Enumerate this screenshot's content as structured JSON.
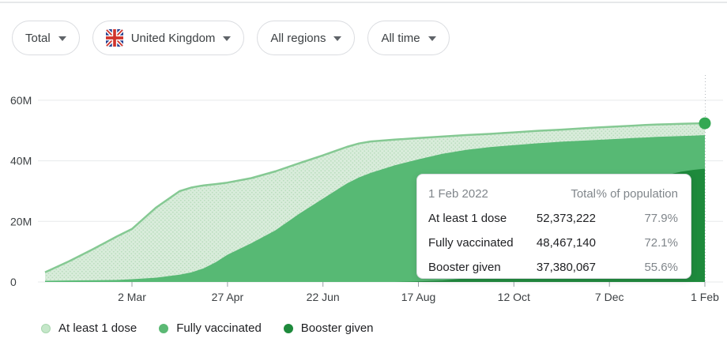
{
  "filters": [
    {
      "label": "Total"
    },
    {
      "label": "United Kingdom",
      "flag": "united-kingdom"
    },
    {
      "label": "All regions"
    },
    {
      "label": "All time"
    }
  ],
  "tooltip": {
    "date": "1 Feb 2022",
    "columns": {
      "total": "Total",
      "pct": "% of population"
    },
    "rows": [
      {
        "label": "At least 1 dose",
        "total": "52,373,222",
        "pct": "77.9%"
      },
      {
        "label": "Fully vaccinated",
        "total": "48,467,140",
        "pct": "72.1%"
      },
      {
        "label": "Booster given",
        "total": "37,380,067",
        "pct": "55.6%"
      }
    ]
  },
  "legend": [
    {
      "label": "At least 1 dose",
      "color": "#c5e7c9",
      "ring": "#a8d6ae"
    },
    {
      "label": "Fully vaccinated",
      "color": "#5bb974",
      "ring": "#5bb974"
    },
    {
      "label": "Booster given",
      "color": "#1e8a3c",
      "ring": "#1e8a3c"
    }
  ],
  "chart_data": {
    "type": "area",
    "title": "",
    "xlabel": "",
    "ylabel": "",
    "ylim": [
      0,
      68
    ],
    "grid": true,
    "legend_position": "bottom",
    "x_unit": "days-from-chart-start",
    "days": [
      0,
      14,
      28,
      42,
      51,
      65,
      79,
      86,
      93,
      100,
      107,
      121,
      135,
      149,
      163,
      170,
      177,
      184,
      191,
      205,
      219,
      233,
      247,
      261,
      275,
      289,
      303,
      317,
      331,
      345,
      352,
      359,
      366,
      373,
      380,
      387
    ],
    "series": [
      {
        "name": "At least 1 dose",
        "fill": "#d9ecdb",
        "pattern_dot": "#b9ddbd",
        "stroke": "#85c993",
        "values": [
          3.2,
          6.8,
          10.8,
          15.0,
          17.5,
          24.5,
          30.0,
          31.2,
          31.9,
          32.3,
          32.8,
          34.3,
          36.5,
          39.2,
          41.8,
          43.2,
          44.6,
          45.7,
          46.4,
          47.0,
          47.5,
          48.0,
          48.5,
          48.9,
          49.4,
          49.9,
          50.3,
          50.8,
          51.2,
          51.6,
          51.8,
          52.0,
          52.1,
          52.2,
          52.3,
          52.373222
        ]
      },
      {
        "name": "Fully vaccinated",
        "fill": "#57b974",
        "stroke": "",
        "values": [
          0.4,
          0.5,
          0.55,
          0.65,
          0.9,
          1.4,
          2.4,
          3.2,
          4.5,
          6.5,
          9.0,
          12.8,
          17.0,
          22.5,
          27.5,
          30.0,
          32.5,
          34.5,
          36.0,
          38.5,
          40.5,
          42.3,
          43.6,
          44.5,
          45.2,
          45.8,
          46.3,
          46.7,
          47.1,
          47.5,
          47.7,
          47.9,
          48.05,
          48.2,
          48.33,
          48.46714
        ]
      },
      {
        "name": "Booster given",
        "fill": "#1e8a3c",
        "stroke": "",
        "values": [
          0,
          0,
          0,
          0,
          0,
          0,
          0,
          0,
          0,
          0,
          0,
          0,
          0,
          0,
          0,
          0,
          0,
          0,
          0,
          0,
          0.2,
          0.5,
          1.2,
          2.5,
          4.2,
          7.0,
          11.0,
          16.0,
          21.5,
          29.0,
          32.0,
          34.2,
          35.5,
          36.4,
          37.0,
          37.380067
        ]
      }
    ],
    "x_ticks": [
      {
        "day": 51,
        "label": "2 Mar"
      },
      {
        "day": 107,
        "label": "27 Apr"
      },
      {
        "day": 163,
        "label": "22 Jun"
      },
      {
        "day": 219,
        "label": "17 Aug"
      },
      {
        "day": 275,
        "label": "12 Oct"
      },
      {
        "day": 331,
        "label": "7 Dec"
      },
      {
        "day": 387,
        "label": "1 Feb"
      }
    ],
    "y_ticks": [
      {
        "value": 0,
        "label": "0"
      },
      {
        "value": 20,
        "label": "20M"
      },
      {
        "value": 40,
        "label": "40M"
      },
      {
        "value": 60,
        "label": "60M"
      }
    ],
    "end_marker": {
      "day": 387,
      "value": 52.373222,
      "color": "#34a853"
    },
    "hover_line_day": 387,
    "colors": {
      "grid": "#e7e9eb",
      "tick": "#9aa0a6",
      "axis_text": "#3c4043",
      "hover_line": "#b4b9be"
    }
  }
}
